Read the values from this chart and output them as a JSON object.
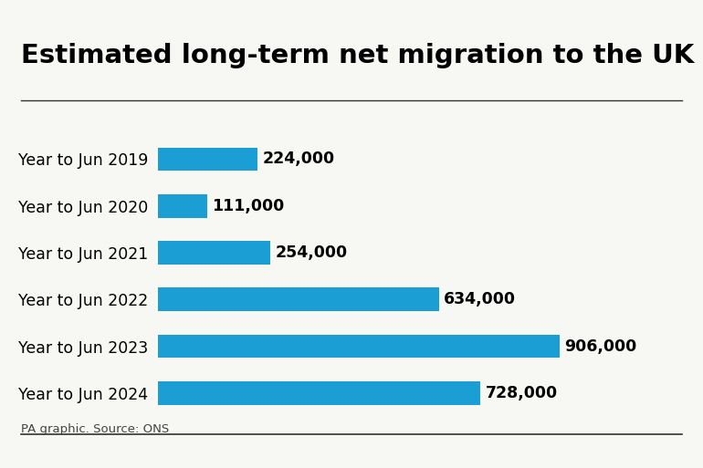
{
  "title": "Estimated long-term net migration to the UK",
  "categories": [
    "Year to Jun 2019",
    "Year to Jun 2020",
    "Year to Jun 2021",
    "Year to Jun 2022",
    "Year to Jun 2023",
    "Year to Jun 2024"
  ],
  "values": [
    224000,
    111000,
    254000,
    634000,
    906000,
    728000
  ],
  "labels": [
    "224,000",
    "111,000",
    "254,000",
    "634,000",
    "906,000",
    "728,000"
  ],
  "bar_color": "#1a9ed4",
  "background_color": "#f7f7f3",
  "title_fontsize": 21,
  "label_fontsize": 12.5,
  "category_fontsize": 12.5,
  "footnote": "PA graphic. Source: ONS",
  "xlim": [
    0,
    1000000
  ]
}
